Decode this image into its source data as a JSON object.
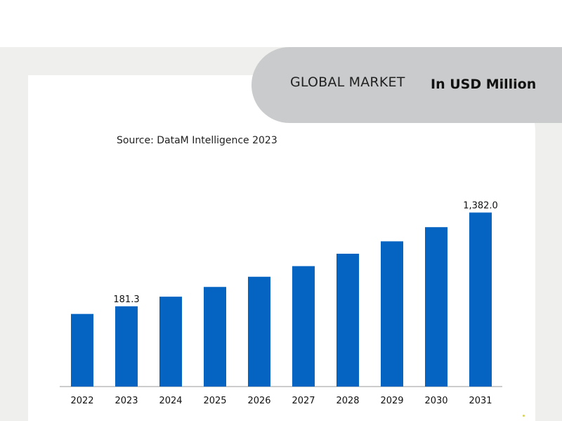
{
  "header": {
    "title": "GLOBAL MARKET",
    "unit": "In USD Million"
  },
  "source": "Source: DataM Intelligence 2023",
  "chart_data": {
    "type": "bar",
    "title": "",
    "xlabel": "",
    "ylabel": "",
    "bar_color": "#0563c1",
    "categories": [
      "2022",
      "2023",
      "2024",
      "2025",
      "2026",
      "2027",
      "2028",
      "2029",
      "2030",
      "2031"
    ],
    "values": [
      164.0,
      181.3,
      203.0,
      225.0,
      248.0,
      272.0,
      300.0,
      328.0,
      360.0,
      1382.0
    ],
    "display_values": [
      164.0,
      181.3,
      203.0,
      225.0,
      248.0,
      272.0,
      300.0,
      328.0,
      360.0,
      393.0
    ],
    "data_labels": [
      {
        "category": "2023",
        "text": "181.3"
      },
      {
        "category": "2031",
        "text": "1,382.0"
      }
    ]
  }
}
